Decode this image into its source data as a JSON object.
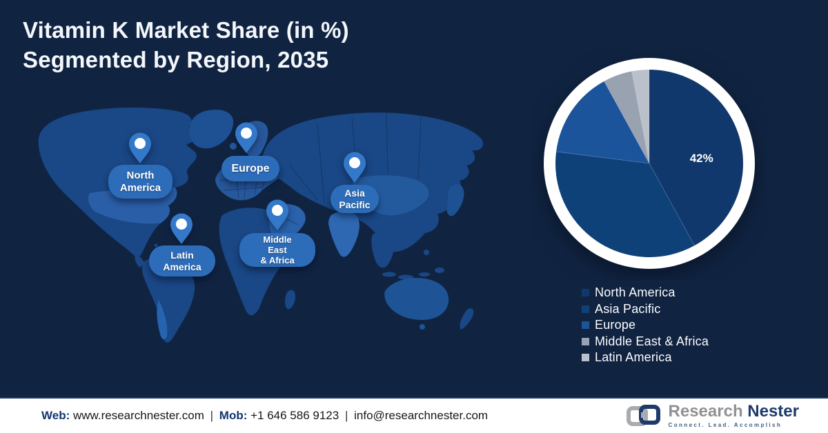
{
  "title": {
    "line1": "Vitamin K Market Share (in %)",
    "line2": "Segmented by Region, 2035"
  },
  "map": {
    "regions": [
      {
        "id": "north-america",
        "label": "North\nAmerica"
      },
      {
        "id": "europe",
        "label": "Europe"
      },
      {
        "id": "asia-pacific",
        "label": "Asia\nPacific"
      },
      {
        "id": "middle-east-africa",
        "label": "Middle\nEast\n& Africa"
      },
      {
        "id": "latin-america",
        "label": "Latin\nAmerica"
      }
    ]
  },
  "chart_data": {
    "type": "pie",
    "title": "Vitamin K Market Share (in %) Segmented by Region, 2035",
    "categories": [
      "North America",
      "Asia Pacific",
      "Europe",
      "Middle East & Africa",
      "Latin America"
    ],
    "values": [
      42,
      35,
      15,
      5,
      3
    ],
    "unit": "%",
    "colors": [
      "#11386c",
      "#0f4179",
      "#1b549a",
      "#98a2b1",
      "#bac1cb"
    ],
    "start_angle_deg": 0,
    "direction": "clockwise",
    "legend_position": "bottom-right",
    "data_labels": [
      {
        "series": "North America",
        "text": "42%",
        "angle_deg": 84,
        "radius_frac": 0.56
      }
    ]
  },
  "footer": {
    "web_label": "Web:",
    "web_value": "www.researchnester.com",
    "separator": "|",
    "mob_label": "Mob:",
    "mob_value": "+1 646 586 9123",
    "email": "info@researchnester.com"
  },
  "logo": {
    "name_part1": "Research",
    "name_part2": "Nester",
    "tagline": "Connect. Lead. Accomplish"
  },
  "theme": {
    "background": "#102442",
    "map_base": "#1a4785",
    "pin_blue": "#3479c9",
    "pill_blue": "#2d6cb8"
  }
}
